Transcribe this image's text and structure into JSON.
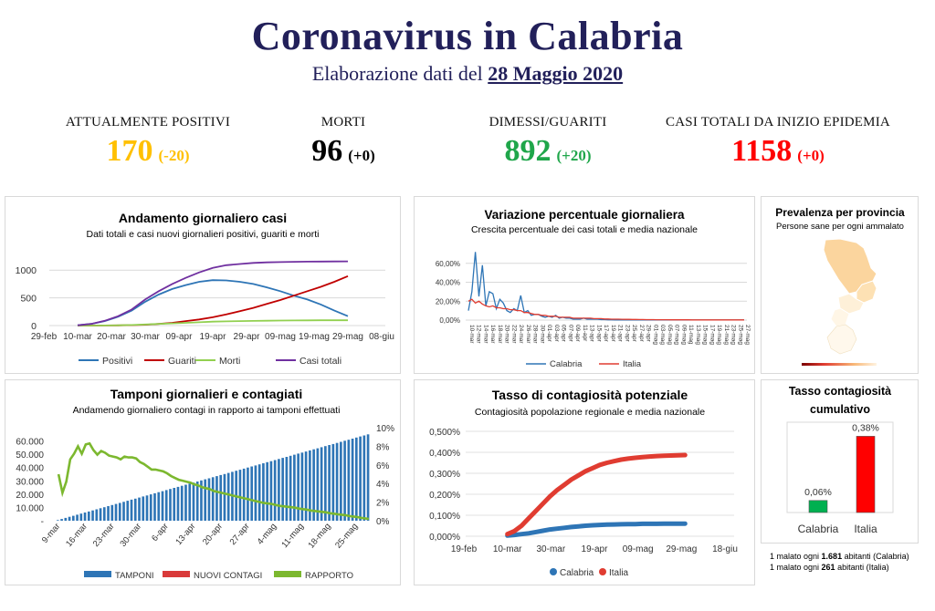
{
  "header": {
    "title": "Coronavirus in Calabria",
    "subtitle_prefix": "Elaborazione dati del",
    "subtitle_date": "28 Maggio 2020"
  },
  "kpis": [
    {
      "label": "ATTUALMENTE POSITIVI",
      "value": "170",
      "delta": "(-20)",
      "color": "#ffc000"
    },
    {
      "label": "MORTI",
      "value": "96",
      "delta": "(+0)",
      "color": "#000000"
    },
    {
      "label": "DIMESSI/GUARITI",
      "value": "892",
      "delta": "(+20)",
      "color": "#1fa64a"
    },
    {
      "label": "CASI TOTALI DA INIZIO EPIDEMIA",
      "value": "1158",
      "delta": "(+0)",
      "color": "#ff0000"
    }
  ],
  "chart_data": [
    {
      "type": "line",
      "title": "Andamento giornaliero casi",
      "subtitle": "Dati totali e casi nuovi giornalieri positivi, guariti e morti",
      "x_ticks": [
        "29-feb",
        "10-mar",
        "20-mar",
        "30-mar",
        "09-apr",
        "19-apr",
        "29-apr",
        "09-mag",
        "19-mag",
        "29-mag",
        "08-giu"
      ],
      "y_ticks": [
        "0",
        "500",
        "1000"
      ],
      "ylim": [
        0,
        1300
      ],
      "x": [
        "10-mar",
        "14-mar",
        "18-mar",
        "22-mar",
        "26-mar",
        "30-mar",
        "03-apr",
        "07-apr",
        "11-apr",
        "15-apr",
        "19-apr",
        "23-apr",
        "27-apr",
        "01-mag",
        "05-mag",
        "09-mag",
        "13-mag",
        "17-mag",
        "21-mag",
        "25-mag",
        "29-mag"
      ],
      "series": [
        {
          "name": "Positivi",
          "color": "#2e75b6",
          "values": [
            5,
            30,
            80,
            160,
            270,
            430,
            560,
            660,
            730,
            790,
            820,
            815,
            790,
            750,
            690,
            620,
            540,
            470,
            380,
            270,
            170
          ]
        },
        {
          "name": "Guariti",
          "color": "#c00000",
          "values": [
            0,
            0,
            1,
            3,
            8,
            15,
            30,
            50,
            80,
            110,
            150,
            200,
            260,
            320,
            390,
            460,
            540,
            620,
            700,
            790,
            892
          ]
        },
        {
          "name": "Morti",
          "color": "#92d050",
          "values": [
            0,
            0,
            2,
            5,
            10,
            20,
            30,
            40,
            50,
            60,
            70,
            75,
            80,
            84,
            88,
            90,
            92,
            94,
            95,
            96,
            96
          ]
        },
        {
          "name": "Casi totali",
          "color": "#7030a0",
          "values": [
            5,
            30,
            85,
            170,
            290,
            470,
            620,
            750,
            860,
            960,
            1040,
            1090,
            1110,
            1130,
            1140,
            1145,
            1150,
            1153,
            1155,
            1157,
            1158
          ]
        }
      ]
    },
    {
      "type": "line",
      "title": "Variazione percentuale giornaliera",
      "subtitle": "Crescita percentuale dei casi totali e media nazionale",
      "y_ticks": [
        "0,00%",
        "20,00%",
        "40,00%",
        "60,00%"
      ],
      "ylim": [
        0,
        80
      ],
      "x_ticks": [
        "10-mar",
        "12-mar",
        "14-mar",
        "16-mar",
        "18-mar",
        "20-mar",
        "22-mar",
        "24-mar",
        "26-mar",
        "28-mar",
        "30-mar",
        "01-apr",
        "03-apr",
        "05-apr",
        "07-apr",
        "09-apr",
        "11-apr",
        "13-apr",
        "15-apr",
        "17-apr",
        "19-apr",
        "21-apr",
        "23-apr",
        "25-apr",
        "27-apr",
        "29-apr",
        "01-mag",
        "03-mag",
        "05-mag",
        "07-mag",
        "09-mag",
        "11-mag",
        "13-mag",
        "15-mag",
        "17-mag",
        "19-mag",
        "21-mag",
        "23-mag",
        "25-mag",
        "27-mag"
      ],
      "series": [
        {
          "name": "Calabria",
          "color": "#2e75b6",
          "values": [
            10,
            30,
            72,
            25,
            58,
            15,
            30,
            28,
            12,
            22,
            18,
            10,
            8,
            12,
            10,
            26,
            8,
            10,
            5,
            6,
            6,
            4,
            3,
            4,
            3,
            5,
            2,
            3,
            2,
            2,
            1,
            1,
            1,
            2,
            1,
            1,
            1,
            1,
            0.5,
            0.5,
            0.3,
            0.3,
            0.2,
            0.2,
            0.2,
            0.1,
            0.1,
            0.1,
            0.1,
            0.1,
            0.1,
            0.1,
            0.1,
            0.1,
            0.1,
            0.1,
            0.1,
            0.1,
            0.1,
            0.1,
            0.1,
            0.1,
            0.1,
            0.1,
            0.1,
            0.1,
            0.1,
            0.1,
            0.1,
            0.1,
            0.1,
            0.1,
            0.1,
            0.1,
            0.1,
            0.1,
            0.1,
            0.1,
            0.1,
            0.1
          ]
        },
        {
          "name": "Italia",
          "color": "#e03c31",
          "values": [
            20,
            22,
            18,
            20,
            17,
            15,
            14,
            15,
            13,
            13,
            12,
            12,
            11,
            11,
            10,
            10,
            8,
            8,
            7,
            6,
            6,
            5,
            5,
            4,
            4,
            4,
            3,
            3,
            3,
            3,
            2,
            2,
            2,
            2,
            2,
            2,
            1.5,
            1.5,
            1.5,
            1.2,
            1.2,
            1,
            1,
            1,
            0.9,
            0.8,
            0.8,
            0.7,
            0.7,
            0.6,
            0.6,
            0.5,
            0.5,
            0.5,
            0.4,
            0.4,
            0.4,
            0.4,
            0.3,
            0.3,
            0.3,
            0.3,
            0.3,
            0.3,
            0.2,
            0.2,
            0.2,
            0.2,
            0.2,
            0.2,
            0.2,
            0.2,
            0.2,
            0.2,
            0.2,
            0.2,
            0.2,
            0.2,
            0.2,
            0.2
          ]
        }
      ]
    },
    {
      "type": "map",
      "title": "Prevalenza per provincia",
      "subtitle": "Persone sane per ogni ammalato"
    },
    {
      "type": "bar",
      "title": "Tamponi giornalieri e contagiati",
      "subtitle": "Andamendo giornaliero contagi in rapporto ai tamponi effettuati",
      "x_ticks": [
        "9-mar",
        "16-mar",
        "23-mar",
        "30-mar",
        "6-apr",
        "13-apr",
        "20-apr",
        "27-apr",
        "4-mag",
        "11-mag",
        "18-mag",
        "25-mag"
      ],
      "y_ticks": [
        "-",
        "10.000",
        "20.000",
        "30.000",
        "40.000",
        "50.000",
        "60.000"
      ],
      "y2_ticks": [
        "0%",
        "2%",
        "4%",
        "6%",
        "8%",
        "10%"
      ],
      "ylim": [
        0,
        70000
      ],
      "y2lim": [
        0,
        10
      ],
      "legend": [
        "TAMPONI",
        "NUOVI CONTAGI",
        "RAPPORTO"
      ],
      "legend_colors": [
        "#2e75b6",
        "#d93a3a",
        "#7cb82f"
      ],
      "tamponi_start": 500,
      "tamponi_end": 65000,
      "tamponi_count": 81,
      "rapporto": [
        5.0,
        3.0,
        4.2,
        6.6,
        7.2,
        8.0,
        7.2,
        8.2,
        8.3,
        7.6,
        7.1,
        7.5,
        7.3,
        7.0,
        6.9,
        6.8,
        6.6,
        6.9,
        6.8,
        6.8,
        6.7,
        6.3,
        6.1,
        5.8,
        5.5,
        5.5,
        5.4,
        5.3,
        5.1,
        4.8,
        4.6,
        4.4,
        4.3,
        4.2,
        4.1,
        3.9,
        3.8,
        3.6,
        3.5,
        3.4,
        3.2,
        3.1,
        3.0,
        2.9,
        2.8,
        2.7,
        2.6,
        2.5,
        2.4,
        2.3,
        2.2,
        2.1,
        2.0,
        1.9,
        1.85,
        1.8,
        1.7,
        1.6,
        1.55,
        1.5,
        1.45,
        1.4,
        1.3,
        1.25,
        1.2,
        1.1,
        1.05,
        1.0,
        0.95,
        0.9,
        0.8,
        0.75,
        0.7,
        0.65,
        0.6,
        0.5,
        0.45,
        0.4,
        0.3,
        0.25,
        0.2
      ]
    },
    {
      "type": "line",
      "title": "Tasso di contagiosità potenziale",
      "subtitle": "Contagiosità popolazione regionale e media nazionale",
      "x_ticks": [
        "19-feb",
        "10-mar",
        "30-mar",
        "19-apr",
        "09-mag",
        "29-mag",
        "18-giu"
      ],
      "y_ticks": [
        "0,000%",
        "0,100%",
        "0,200%",
        "0,300%",
        "0,400%",
        "0,500%"
      ],
      "ylim": [
        0,
        0.5
      ],
      "series": [
        {
          "name": "Calabria",
          "color": "#2e75b6",
          "values": [
            0.003,
            0.006,
            0.01,
            0.014,
            0.02,
            0.026,
            0.032,
            0.036,
            0.04,
            0.044,
            0.047,
            0.05,
            0.052,
            0.054,
            0.055,
            0.056,
            0.057,
            0.058,
            0.058,
            0.059,
            0.059,
            0.059,
            0.06,
            0.06,
            0.06,
            0.06
          ]
        },
        {
          "name": "Italia",
          "color": "#e03c31",
          "values": [
            0.01,
            0.025,
            0.05,
            0.085,
            0.12,
            0.155,
            0.19,
            0.22,
            0.245,
            0.27,
            0.29,
            0.31,
            0.325,
            0.34,
            0.35,
            0.358,
            0.365,
            0.37,
            0.374,
            0.377,
            0.38,
            0.382,
            0.384,
            0.385,
            0.386,
            0.387
          ]
        }
      ]
    },
    {
      "type": "bar",
      "title": "Tasso contagiosità cumulativo",
      "categories": [
        "Calabria",
        "Italia"
      ],
      "values": [
        0.06,
        0.38
      ],
      "labels": [
        "0,06%",
        "0,38%"
      ],
      "colors": [
        "#00b050",
        "#ff0000"
      ],
      "ylim": [
        0,
        0.45
      ],
      "notes": [
        {
          "prefix": "1 malato ogni ",
          "num": "1.681",
          "suffix": " abitanti (Calabria)"
        },
        {
          "prefix": "1 malato ogni ",
          "num": "261",
          "suffix": " abitanti (Italia)"
        }
      ]
    }
  ]
}
